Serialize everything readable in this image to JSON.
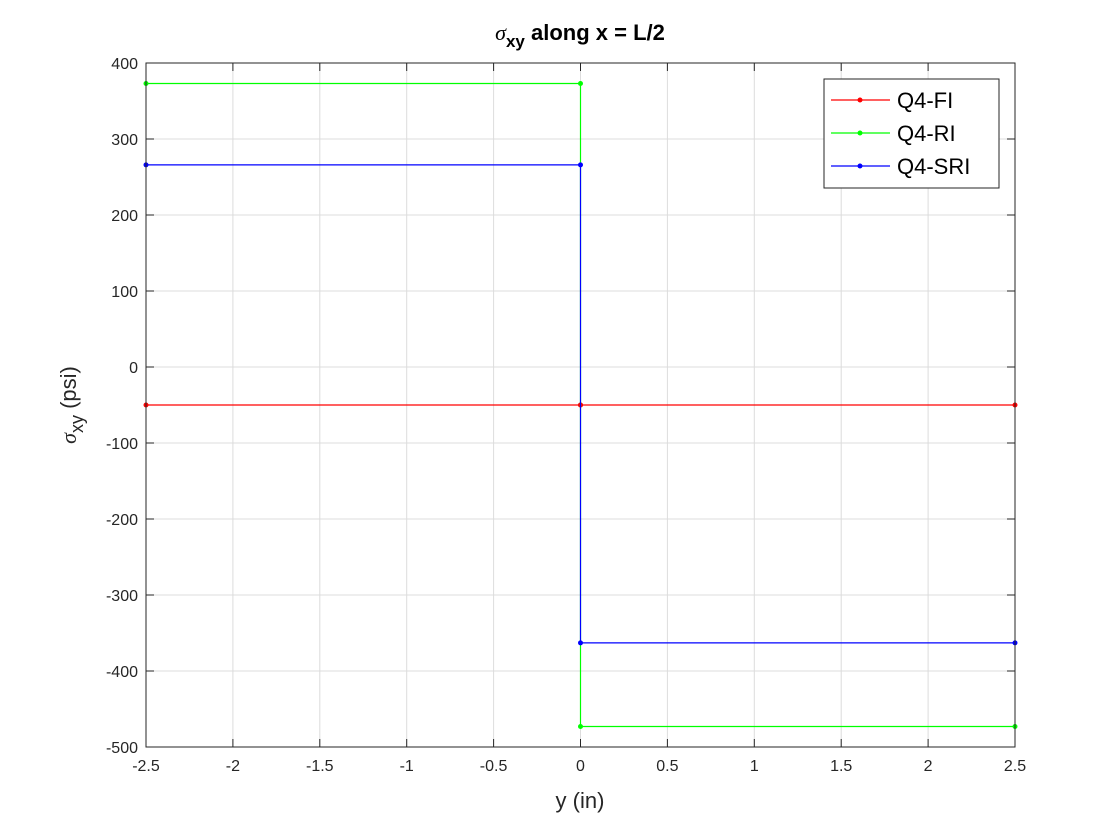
{
  "chart_data": {
    "type": "line",
    "title": {
      "greek": "σ",
      "sub": "xy",
      "rest": " along x = L/2"
    },
    "xlabel": "y (in)",
    "ylabel": {
      "greek": "σ",
      "sub": "xy",
      "rest": "  (psi)"
    },
    "xlim": [
      -2.5,
      2.5
    ],
    "ylim": [
      -500,
      400
    ],
    "xticks": [
      -2.5,
      -2,
      -1.5,
      -1,
      -0.5,
      0,
      0.5,
      1,
      1.5,
      2,
      2.5
    ],
    "yticks": [
      -500,
      -400,
      -300,
      -200,
      -100,
      0,
      100,
      200,
      300,
      400
    ],
    "grid": true,
    "legend_position": "top-right",
    "series": [
      {
        "name": "Q4-FI",
        "color": "#ff0000",
        "x": [
          -2.5,
          0,
          0,
          2.5
        ],
        "y": [
          -50,
          -50,
          -50,
          -50
        ]
      },
      {
        "name": "Q4-RI",
        "color": "#00ff00",
        "x": [
          -2.5,
          0,
          0,
          2.5
        ],
        "y": [
          373,
          373,
          -473,
          -473
        ]
      },
      {
        "name": "Q4-SRI",
        "color": "#0000ff",
        "x": [
          -2.5,
          0,
          0,
          2.5
        ],
        "y": [
          266,
          266,
          -363,
          -363
        ]
      }
    ]
  }
}
